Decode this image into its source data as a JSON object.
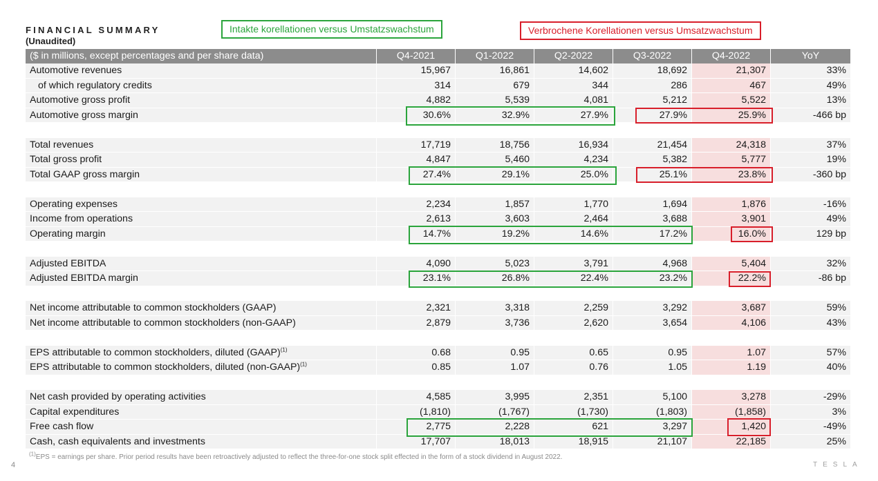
{
  "header": {
    "title": "FINANCIAL SUMMARY",
    "subtitle": "(Unaudited)"
  },
  "annotations": {
    "green": "Intakte korellationen versus Umstatzswachstum",
    "red": "Verbrochene Korellationen versus Umsatzwachstum"
  },
  "table": {
    "header_label": "($ in millions, except percentages and per share data)",
    "columns": [
      "Q4-2021",
      "Q1-2022",
      "Q2-2022",
      "Q3-2022",
      "Q4-2022",
      "YoY"
    ],
    "rows": [
      {
        "label": "Automotive revenues",
        "values": [
          "15,967",
          "16,861",
          "14,602",
          "18,692",
          "21,307",
          "33%"
        ]
      },
      {
        "label": "of which regulatory credits",
        "values": [
          "314",
          "679",
          "344",
          "286",
          "467",
          "49%"
        ]
      },
      {
        "label": "Automotive gross profit",
        "values": [
          "4,882",
          "5,539",
          "4,081",
          "5,212",
          "5,522",
          "13%"
        ]
      },
      {
        "label": "Automotive gross margin",
        "values": [
          "30.6%",
          "32.9%",
          "27.9%",
          "27.9%",
          "25.9%",
          "-466 bp"
        ]
      },
      {
        "label": "Total revenues",
        "values": [
          "17,719",
          "18,756",
          "16,934",
          "21,454",
          "24,318",
          "37%"
        ]
      },
      {
        "label": "Total gross profit",
        "values": [
          "4,847",
          "5,460",
          "4,234",
          "5,382",
          "5,777",
          "19%"
        ]
      },
      {
        "label": "Total GAAP gross margin",
        "values": [
          "27.4%",
          "29.1%",
          "25.0%",
          "25.1%",
          "23.8%",
          "-360 bp"
        ]
      },
      {
        "label": "Operating expenses",
        "values": [
          "2,234",
          "1,857",
          "1,770",
          "1,694",
          "1,876",
          "-16%"
        ]
      },
      {
        "label": "Income from operations",
        "values": [
          "2,613",
          "3,603",
          "2,464",
          "3,688",
          "3,901",
          "49%"
        ]
      },
      {
        "label": "Operating margin",
        "values": [
          "14.7%",
          "19.2%",
          "14.6%",
          "17.2%",
          "16.0%",
          "129 bp"
        ]
      },
      {
        "label": "Adjusted EBITDA",
        "values": [
          "4,090",
          "5,023",
          "3,791",
          "4,968",
          "5,404",
          "32%"
        ]
      },
      {
        "label": "Adjusted EBITDA margin",
        "values": [
          "23.1%",
          "26.8%",
          "22.4%",
          "23.2%",
          "22.2%",
          "-86 bp"
        ]
      },
      {
        "label": "Net income attributable to common stockholders (GAAP)",
        "values": [
          "2,321",
          "3,318",
          "2,259",
          "3,292",
          "3,687",
          "59%"
        ]
      },
      {
        "label": "Net income attributable to common stockholders (non-GAAP)",
        "values": [
          "2,879",
          "3,736",
          "2,620",
          "3,654",
          "4,106",
          "43%"
        ]
      },
      {
        "label": "EPS attributable to common stockholders, diluted (GAAP)",
        "sup": "(1)",
        "values": [
          "0.68",
          "0.95",
          "0.65",
          "0.95",
          "1.07",
          "57%"
        ]
      },
      {
        "label": "EPS attributable to common stockholders, diluted (non-GAAP)",
        "sup": "(1)",
        "values": [
          "0.85",
          "1.07",
          "0.76",
          "1.05",
          "1.19",
          "40%"
        ]
      },
      {
        "label": "Net cash provided by operating activities",
        "values": [
          "4,585",
          "3,995",
          "2,351",
          "5,100",
          "3,278",
          "-29%"
        ]
      },
      {
        "label": "Capital expenditures",
        "values": [
          "(1,810)",
          "(1,767)",
          "(1,730)",
          "(1,803)",
          "(1,858)",
          "3%"
        ]
      },
      {
        "label": "Free cash flow",
        "values": [
          "2,775",
          "2,228",
          "621",
          "3,297",
          "1,420",
          "-49%"
        ]
      },
      {
        "label": "Cash, cash equivalents and investments",
        "values": [
          "17,707",
          "18,013",
          "18,915",
          "21,107",
          "22,185",
          "25%"
        ]
      }
    ]
  },
  "footnote": {
    "sup": "(1)",
    "text": "EPS = earnings per share. Prior period results have been retroactively adjusted to reflect the three-for-one stock split effected in the form of a stock dividend in August 2022."
  },
  "footer": {
    "page_number": "4",
    "logo": "TESLA"
  },
  "colors": {
    "header_bg": "#8c8c8c",
    "row_bg": "#f2f2f2",
    "highlight_bg": "#f7dede",
    "green": "#2aa43b",
    "red": "#d81e2a"
  }
}
